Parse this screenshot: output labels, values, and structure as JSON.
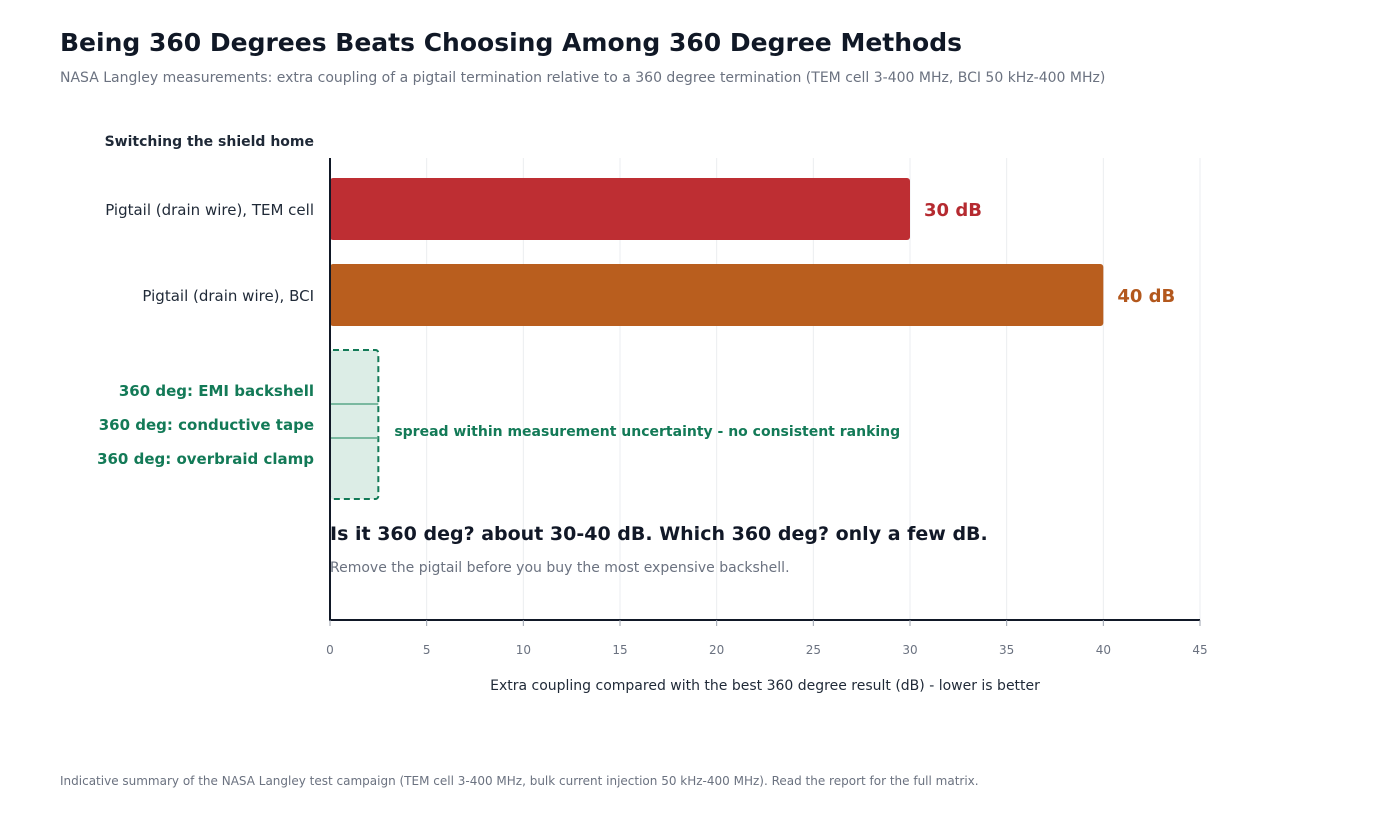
{
  "title": "Being 360 Degrees Beats Choosing Among 360 Degree Methods",
  "subtitle": "NASA Langley measurements: extra coupling of a pigtail termination relative to a 360 degree termination (TEM cell 3-400 MHz, BCI 50 kHz-400 MHz)",
  "footer": "Indicative summary of the NASA Langley test campaign (TEM cell 3-400 MHz, bulk current injection 50 kHz-400 MHz). Read the report for the full matrix.",
  "chart_data": {
    "type": "bar",
    "orientation": "horizontal",
    "y_header": "Switching the shield home",
    "categories": [
      "Pigtail (drain wire), TEM cell",
      "Pigtail (drain wire), BCI"
    ],
    "values": [
      30,
      40
    ],
    "value_labels": [
      "30 dB",
      "40 dB"
    ],
    "colors": [
      "#be2e33",
      "#b95e1e"
    ],
    "label_colors": [
      "#b52a30",
      "#b3581d"
    ],
    "group": {
      "labels": [
        "360 deg: EMI backshell",
        "360 deg: conductive tape",
        "360 deg: overbraid clamp"
      ],
      "range": [
        0,
        2.5
      ],
      "note": "spread within measurement uncertainty - no consistent ranking",
      "color": "#137a57",
      "fill": "#dcede6"
    },
    "annotation": {
      "headline": "Is it 360 deg? about 30-40 dB. Which 360 deg? only a few dB.",
      "sub": "Remove the pigtail before you buy the most expensive backshell."
    },
    "xlabel": "Extra coupling compared with the best 360 degree result (dB) - lower is better",
    "xlim": [
      0,
      45
    ],
    "xticks": [
      0,
      5,
      10,
      15,
      20,
      25,
      30,
      35,
      40,
      45
    ],
    "grid": true
  }
}
